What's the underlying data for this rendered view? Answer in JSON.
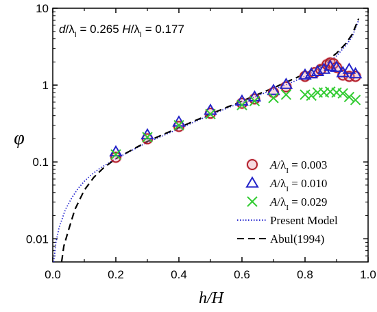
{
  "chart_data": {
    "type": "scatter",
    "xlabel": "h/H",
    "ylabel": "φ",
    "xlim": [
      0,
      1.0
    ],
    "ylim": [
      0.005,
      10
    ],
    "yscale": "log",
    "grid": false,
    "legend_position": "bottom-right",
    "x_ticks": [
      "0.0",
      "0.2",
      "0.4",
      "0.6",
      "0.8",
      "1.0"
    ],
    "y_ticks": [
      "0.01",
      "0.1",
      "1",
      "10"
    ],
    "annotation": "d/λI = 0.265  H/λI = 0.177",
    "series": [
      {
        "name": "A/λI = 0.003",
        "marker": "circle",
        "color": "#b3202a",
        "points": [
          [
            0.2,
            0.115
          ],
          [
            0.3,
            0.2
          ],
          [
            0.4,
            0.29
          ],
          [
            0.5,
            0.43
          ],
          [
            0.6,
            0.58
          ],
          [
            0.64,
            0.66
          ],
          [
            0.7,
            0.8
          ],
          [
            0.74,
            0.95
          ],
          [
            0.8,
            1.3
          ],
          [
            0.83,
            1.45
          ],
          [
            0.85,
            1.6
          ],
          [
            0.87,
            1.85
          ],
          [
            0.88,
            1.95
          ],
          [
            0.89,
            1.9
          ],
          [
            0.9,
            1.7
          ],
          [
            0.92,
            1.35
          ],
          [
            0.94,
            1.3
          ],
          [
            0.96,
            1.3
          ]
        ]
      },
      {
        "name": "A/λI = 0.010",
        "marker": "triangle",
        "color": "#2323c8",
        "points": [
          [
            0.2,
            0.135
          ],
          [
            0.3,
            0.225
          ],
          [
            0.4,
            0.33
          ],
          [
            0.5,
            0.47
          ],
          [
            0.6,
            0.62
          ],
          [
            0.64,
            0.7
          ],
          [
            0.7,
            0.85
          ],
          [
            0.74,
            1.02
          ],
          [
            0.8,
            1.35
          ],
          [
            0.82,
            1.4
          ],
          [
            0.84,
            1.5
          ],
          [
            0.86,
            1.6
          ],
          [
            0.88,
            1.75
          ],
          [
            0.9,
            1.7
          ],
          [
            0.92,
            1.45
          ],
          [
            0.94,
            1.6
          ],
          [
            0.96,
            1.4
          ]
        ]
      },
      {
        "name": "A/λI = 0.029",
        "marker": "cross",
        "color": "#33cc33",
        "points": [
          [
            0.2,
            0.125
          ],
          [
            0.3,
            0.21
          ],
          [
            0.4,
            0.3
          ],
          [
            0.5,
            0.42
          ],
          [
            0.6,
            0.55
          ],
          [
            0.64,
            0.62
          ],
          [
            0.7,
            0.68
          ],
          [
            0.74,
            0.75
          ],
          [
            0.8,
            0.75
          ],
          [
            0.82,
            0.73
          ],
          [
            0.84,
            0.8
          ],
          [
            0.86,
            0.8
          ],
          [
            0.88,
            0.82
          ],
          [
            0.9,
            0.8
          ],
          [
            0.92,
            0.78
          ],
          [
            0.94,
            0.7
          ],
          [
            0.96,
            0.64
          ]
        ]
      },
      {
        "name": "Present Model",
        "line_style": "dotted",
        "color": "#2a2ad0",
        "points": [
          [
            0.003,
            0.005
          ],
          [
            0.01,
            0.009
          ],
          [
            0.02,
            0.014
          ],
          [
            0.04,
            0.024
          ],
          [
            0.06,
            0.034
          ],
          [
            0.08,
            0.045
          ],
          [
            0.1,
            0.056
          ],
          [
            0.12,
            0.067
          ],
          [
            0.15,
            0.083
          ],
          [
            0.2,
            0.11
          ],
          [
            0.3,
            0.18
          ],
          [
            0.4,
            0.27
          ],
          [
            0.5,
            0.41
          ],
          [
            0.6,
            0.6
          ],
          [
            0.7,
            0.88
          ],
          [
            0.75,
            1.05
          ],
          [
            0.8,
            1.3
          ],
          [
            0.85,
            1.7
          ],
          [
            0.9,
            2.4
          ],
          [
            0.93,
            3.3
          ],
          [
            0.95,
            4.3
          ],
          [
            0.97,
            7.0
          ]
        ]
      },
      {
        "name": "Abul(1994)",
        "line_style": "dashed",
        "color": "#000000",
        "points": [
          [
            0.028,
            0.005
          ],
          [
            0.035,
            0.008
          ],
          [
            0.05,
            0.013
          ],
          [
            0.07,
            0.024
          ],
          [
            0.1,
            0.043
          ],
          [
            0.13,
            0.063
          ],
          [
            0.16,
            0.083
          ],
          [
            0.2,
            0.11
          ],
          [
            0.3,
            0.185
          ],
          [
            0.4,
            0.28
          ],
          [
            0.5,
            0.42
          ],
          [
            0.6,
            0.62
          ],
          [
            0.7,
            0.92
          ],
          [
            0.8,
            1.4
          ],
          [
            0.85,
            1.8
          ],
          [
            0.9,
            2.6
          ],
          [
            0.93,
            3.5
          ],
          [
            0.95,
            4.6
          ],
          [
            0.97,
            7.3
          ]
        ]
      }
    ]
  }
}
